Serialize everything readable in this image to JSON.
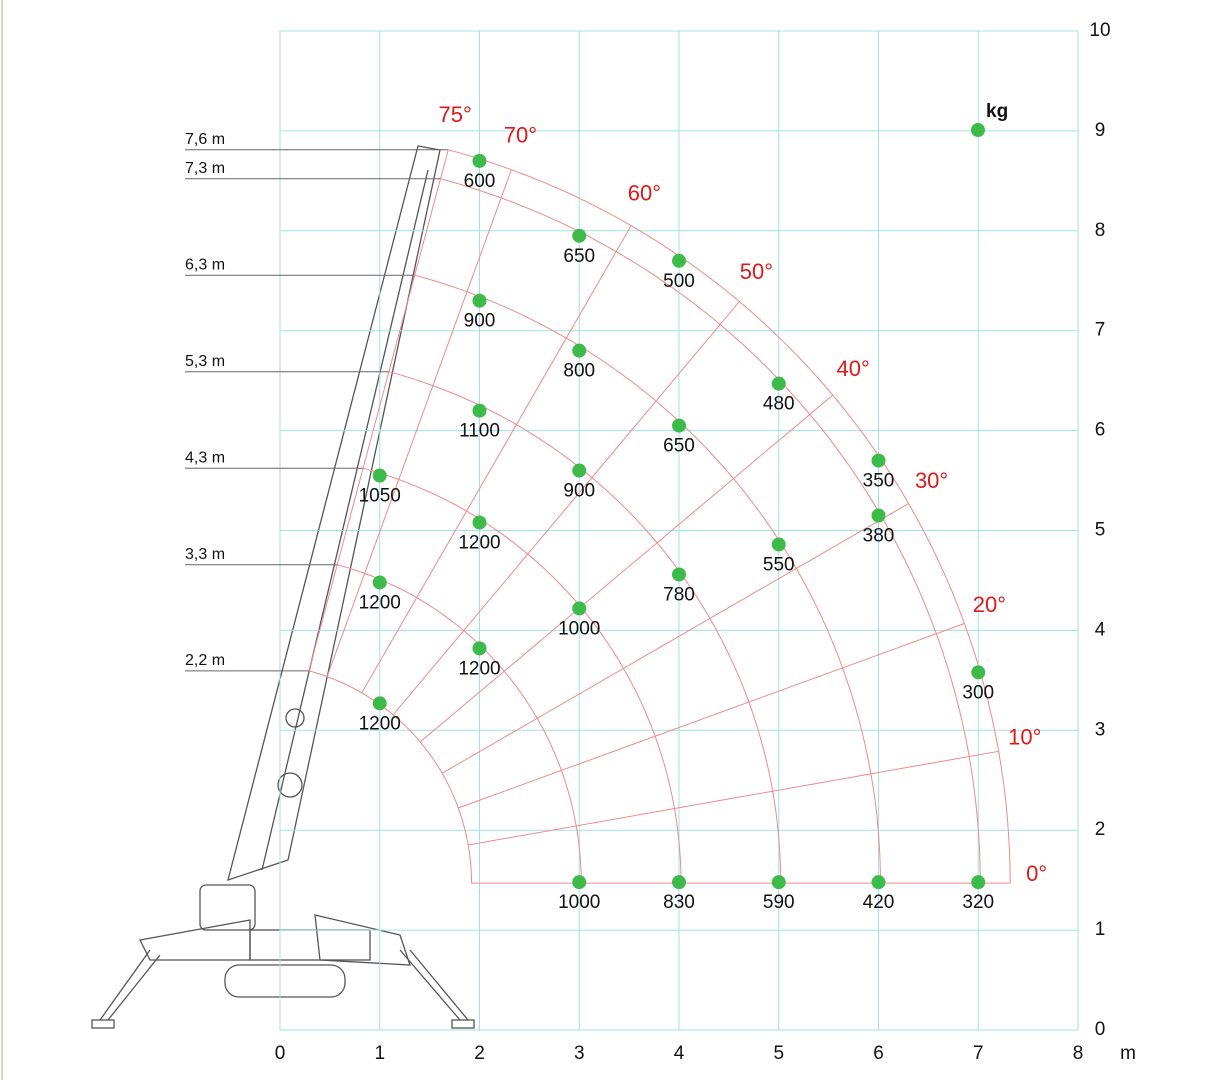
{
  "chart_data": {
    "type": "scatter",
    "xlim": [
      0,
      8
    ],
    "ylim": [
      0,
      10
    ],
    "xticks": [
      0,
      1,
      2,
      3,
      4,
      5,
      6,
      7,
      8
    ],
    "yticks": [
      0,
      1,
      2,
      3,
      4,
      5,
      6,
      7,
      8,
      9,
      10
    ],
    "xlabel": "m",
    "grid": true,
    "legend": "top-right",
    "series": [
      {
        "name": "kg",
        "color": "#3dbb4a",
        "x": [
          2,
          3,
          4,
          2,
          3,
          5,
          2,
          4,
          6,
          1,
          3,
          6,
          2,
          5,
          4,
          1,
          3,
          2,
          7,
          1,
          3,
          4,
          5,
          6,
          7
        ],
        "y": [
          8.7,
          7.95,
          7.7,
          7.3,
          6.8,
          6.47,
          6.2,
          6.05,
          5.7,
          5.55,
          5.6,
          5.15,
          5.08,
          4.86,
          4.56,
          4.48,
          4.22,
          3.82,
          3.58,
          3.27,
          1.48,
          1.48,
          1.48,
          1.48,
          1.48
        ],
        "values": [
          600,
          650,
          500,
          900,
          800,
          480,
          1100,
          650,
          350,
          1050,
          900,
          380,
          1200,
          550,
          780,
          1200,
          1000,
          1200,
          300,
          1200,
          1000,
          830,
          590,
          420,
          320
        ]
      }
    ],
    "booms": [
      {
        "value": 7.6,
        "label": "7,6 m"
      },
      {
        "value": 7.3,
        "label": "7,3 m"
      },
      {
        "value": 6.3,
        "label": "6,3 m"
      },
      {
        "value": 5.3,
        "label": "5,3 m"
      },
      {
        "value": 4.3,
        "label": "4,3 m"
      },
      {
        "value": 3.3,
        "label": "3,3 m"
      },
      {
        "value": 2.2,
        "label": "2,2 m"
      }
    ],
    "angles": [
      {
        "value": 0,
        "label": "0°"
      },
      {
        "value": 10,
        "label": "10°"
      },
      {
        "value": 20,
        "label": "20°"
      },
      {
        "value": 30,
        "label": "30°"
      },
      {
        "value": 40,
        "label": "40°"
      },
      {
        "value": 50,
        "label": "50°"
      },
      {
        "value": 60,
        "label": "60°"
      },
      {
        "value": 70,
        "label": "70°"
      },
      {
        "value": 75,
        "label": "75°"
      }
    ]
  }
}
